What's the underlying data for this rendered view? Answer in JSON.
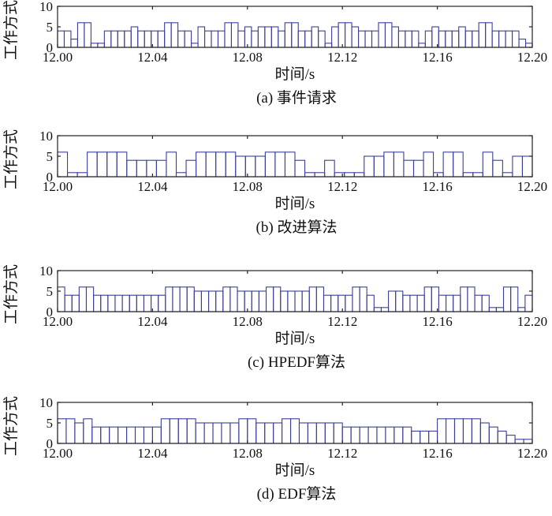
{
  "chart_data": [
    {
      "type": "step",
      "title": "",
      "caption": "(a) 事件请求",
      "xlabel": "时间/s",
      "ylabel": "工作方式",
      "xlim": [
        12.0,
        12.2
      ],
      "ylim": [
        0,
        10
      ],
      "xticks": [
        "12.00",
        "12.04",
        "12.08",
        "12.12",
        "12.16",
        "12.20"
      ],
      "yticks": [
        "0",
        "5",
        "10"
      ],
      "levels": [
        4,
        4,
        2,
        6,
        6,
        1,
        1,
        4,
        4,
        4,
        4,
        5,
        4,
        4,
        4,
        4,
        6,
        6,
        4,
        4,
        1,
        5,
        4,
        4,
        4,
        6,
        6,
        4,
        5,
        4,
        5,
        5,
        5,
        4,
        6,
        6,
        4,
        4,
        5,
        4,
        1,
        5,
        6,
        6,
        5,
        4,
        4,
        4,
        6,
        6,
        5,
        4,
        4,
        4,
        1,
        4,
        5,
        4,
        4,
        4,
        5,
        4,
        4,
        6,
        6,
        4,
        4,
        4,
        4,
        2,
        1
      ]
    },
    {
      "type": "step",
      "title": "",
      "caption": "(b) 改进算法",
      "xlabel": "时间/s",
      "ylabel": "工作方式",
      "xlim": [
        12.0,
        12.2
      ],
      "ylim": [
        0,
        10
      ],
      "xticks": [
        "12.00",
        "12.04",
        "12.08",
        "12.12",
        "12.16",
        "12.20"
      ],
      "yticks": [
        "0",
        "5",
        "10"
      ],
      "levels": [
        6,
        1,
        1,
        6,
        6,
        6,
        6,
        4,
        4,
        4,
        4,
        6,
        1,
        4,
        6,
        6,
        6,
        6,
        5,
        5,
        5,
        6,
        6,
        6,
        4,
        1,
        1,
        4,
        1,
        1,
        1,
        5,
        5,
        6,
        6,
        4,
        4,
        6,
        1,
        6,
        6,
        1,
        1,
        6,
        4,
        1,
        5,
        5
      ]
    },
    {
      "type": "step",
      "title": "",
      "caption": "(c) HPEDF算法",
      "xlabel": "时间/s",
      "ylabel": "工作方式",
      "xlim": [
        12.0,
        12.2
      ],
      "ylim": [
        0,
        10
      ],
      "xticks": [
        "12.00",
        "12.04",
        "12.08",
        "12.12",
        "12.16",
        "12.20"
      ],
      "yticks": [
        "0",
        "5",
        "10"
      ],
      "levels": [
        6,
        4,
        4,
        6,
        6,
        4,
        4,
        4,
        4,
        4,
        4,
        4,
        4,
        4,
        4,
        6,
        6,
        6,
        6,
        5,
        5,
        5,
        5,
        6,
        6,
        5,
        5,
        5,
        5,
        6,
        6,
        5,
        5,
        5,
        5,
        6,
        6,
        4,
        4,
        4,
        4,
        6,
        6,
        4,
        1,
        1,
        5,
        5,
        4,
        4,
        4,
        6,
        6,
        4,
        4,
        4,
        6,
        6,
        4,
        4,
        1,
        1,
        6,
        6,
        1,
        4
      ]
    },
    {
      "type": "step",
      "title": "",
      "caption": "(d) EDF算法",
      "xlabel": "时间/s",
      "ylabel": "工作方式",
      "xlim": [
        12.0,
        12.2
      ],
      "ylim": [
        0,
        10
      ],
      "xticks": [
        "12.00",
        "12.04",
        "12.08",
        "12.12",
        "12.16",
        "12.20"
      ],
      "yticks": [
        "0",
        "5",
        "10"
      ],
      "levels": [
        6,
        6,
        5,
        6,
        4,
        4,
        4,
        4,
        4,
        4,
        4,
        4,
        6,
        6,
        6,
        6,
        5,
        5,
        5,
        5,
        5,
        6,
        6,
        5,
        5,
        5,
        6,
        6,
        5,
        5,
        5,
        5,
        5,
        4,
        4,
        4,
        4,
        4,
        4,
        4,
        4,
        3,
        3,
        3,
        6,
        6,
        6,
        6,
        6,
        5,
        4,
        3,
        2,
        1,
        1
      ]
    }
  ]
}
